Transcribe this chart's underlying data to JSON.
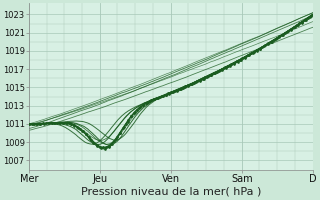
{
  "bg_color": "#cce8d8",
  "plot_bg_color": "#d8f0e4",
  "grid_major_color": "#a8c8b8",
  "grid_minor_color": "#b8d8c8",
  "line_color": "#1a5c20",
  "xlabel": "Pression niveau de la mer( hPa )",
  "xlabel_fontsize": 8,
  "ytick_fontsize": 6,
  "xtick_fontsize": 7,
  "yticks": [
    1007,
    1009,
    1011,
    1013,
    1015,
    1017,
    1019,
    1021,
    1023
  ],
  "xtick_labels": [
    "Mer",
    "Jeu",
    "Ven",
    "Sam",
    "D"
  ],
  "ylim": [
    1006.0,
    1024.2
  ],
  "xlim": [
    0,
    96
  ],
  "x_day_positions": [
    0,
    24,
    48,
    72,
    96
  ]
}
